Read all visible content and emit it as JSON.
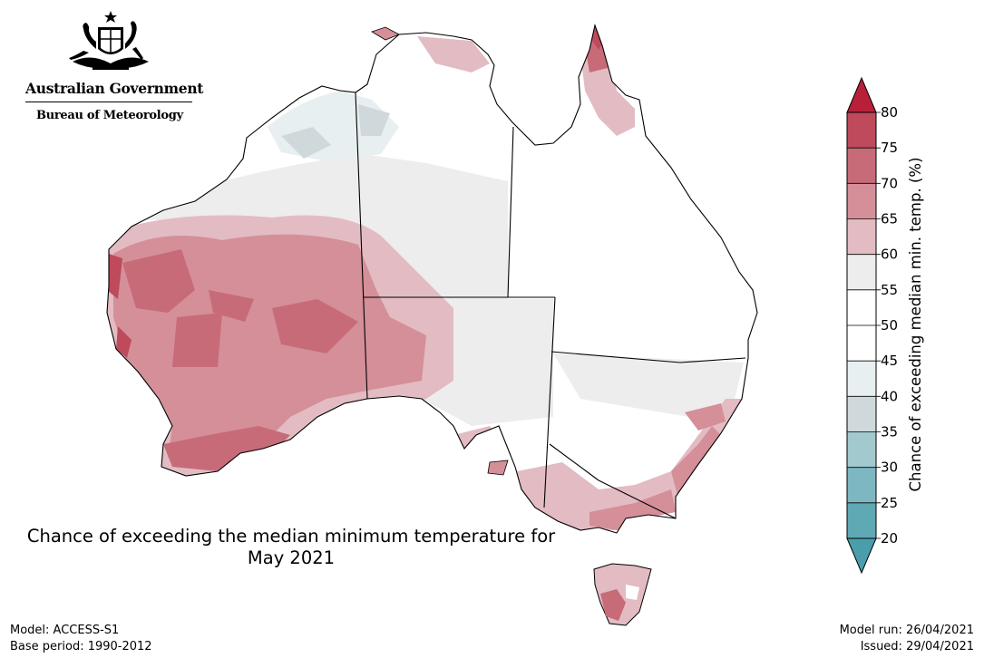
{
  "logo": {
    "government": "Australian Government",
    "bureau": "Bureau of Meteorology"
  },
  "title": {
    "line1": "Chance of exceeding the median minimum temperature for",
    "line2": "May 2021"
  },
  "footer": {
    "model": "Model: ACCESS-S1",
    "base_period": "Base period: 1990-2012",
    "model_run": "Model run: 26/04/2021",
    "issued": "Issued: 29/04/2021"
  },
  "colorbar": {
    "label": "Chance of exceeding median min. temp. (%)",
    "ticks": [
      "20",
      "25",
      "30",
      "35",
      "40",
      "45",
      "50",
      "55",
      "60",
      "65",
      "70",
      "75",
      "80"
    ],
    "bins": [
      {
        "from": 20,
        "to": 25,
        "color": "#5fa9b5"
      },
      {
        "from": 25,
        "to": 30,
        "color": "#7db8c2"
      },
      {
        "from": 30,
        "to": 35,
        "color": "#a2c9ce"
      },
      {
        "from": 35,
        "to": 40,
        "color": "#cfd9db"
      },
      {
        "from": 40,
        "to": 45,
        "color": "#e8eff1"
      },
      {
        "from": 45,
        "to": 50,
        "color": "#ffffff"
      },
      {
        "from": 50,
        "to": 55,
        "color": "#ffffff"
      },
      {
        "from": 55,
        "to": 60,
        "color": "#eeedee"
      },
      {
        "from": 60,
        "to": 65,
        "color": "#e2bcc2"
      },
      {
        "from": 65,
        "to": 70,
        "color": "#d48f99"
      },
      {
        "from": 70,
        "to": 75,
        "color": "#c86b78"
      },
      {
        "from": 75,
        "to": 80,
        "color": "#be4a5c"
      }
    ],
    "below_color": "#4a9eab",
    "above_color": "#b8203a"
  }
}
